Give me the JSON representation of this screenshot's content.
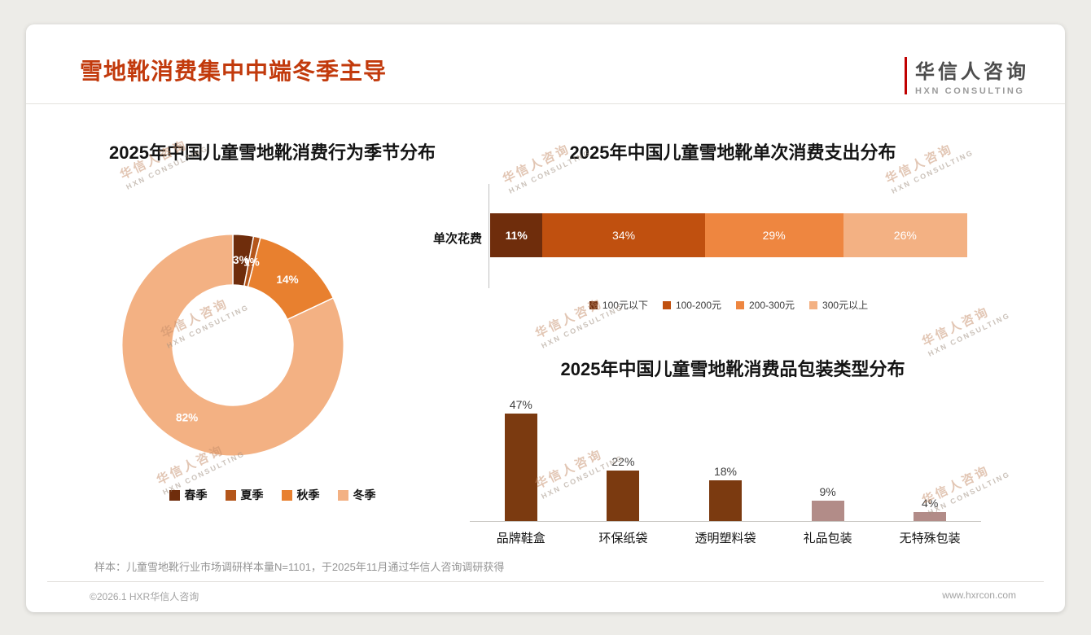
{
  "page": {
    "title": "雪地靴消费集中中端冬季主导"
  },
  "theme": {
    "background": "#EDECE8",
    "card": "#FFFFFF",
    "title_color": "#C23A0C",
    "logo_accent": "#C00000"
  },
  "logo": {
    "name": "华信人咨询",
    "subtitle": "HXN CONSULTING"
  },
  "watermark": {
    "line1": "华信人咨询",
    "line2": "HXN CONSULTING"
  },
  "footer": {
    "sample_note": "样本：儿童雪地靴行业市场调研样本量N=1101，于2025年11月通过华信人咨询调研获得",
    "copyright": "©2026.1 HXR华信人咨询",
    "website": "www.hxrcon.com"
  },
  "chart_data": [
    {
      "id": "season-distribution",
      "type": "pie",
      "donut": true,
      "title": "2025年中国儿童雪地靴消费行为季节分布",
      "categories": [
        "春季",
        "夏季",
        "秋季",
        "冬季"
      ],
      "values": [
        3,
        1,
        14,
        82
      ],
      "labels": [
        "3%",
        "1%",
        "14%",
        "82%"
      ],
      "colors": [
        "#6F2D0C",
        "#B4561B",
        "#E8802F",
        "#F3B183"
      ],
      "legend_position": "bottom"
    },
    {
      "id": "single-spend-distribution",
      "type": "bar",
      "variant": "horizontal-stacked",
      "title": "2025年中国儿童雪地靴单次消费支出分布",
      "row_label": "单次花费",
      "series": [
        {
          "name": "100元以下",
          "value": 11,
          "color": "#6F2D0C"
        },
        {
          "name": "100-200元",
          "value": 34,
          "color": "#C0500F"
        },
        {
          "name": "200-300元",
          "value": 29,
          "color": "#EE8640"
        },
        {
          "name": "300元以上",
          "value": 26,
          "color": "#F3B183"
        }
      ],
      "xlim": [
        0,
        100
      ],
      "legend_position": "bottom"
    },
    {
      "id": "packaging-distribution",
      "type": "bar",
      "title": "2025年中国儿童雪地靴消费品包装类型分布",
      "categories": [
        "品牌鞋盒",
        "环保纸袋",
        "透明塑料袋",
        "礼品包装",
        "无特殊包装"
      ],
      "values": [
        47,
        22,
        18,
        9,
        4
      ],
      "labels": [
        "47%",
        "22%",
        "18%",
        "9%",
        "4%"
      ],
      "colors": [
        "#7B3A10",
        "#7B3A10",
        "#7B3A10",
        "#B28C88",
        "#B28C88"
      ],
      "ylim": [
        0,
        50
      ],
      "grid": false
    }
  ]
}
